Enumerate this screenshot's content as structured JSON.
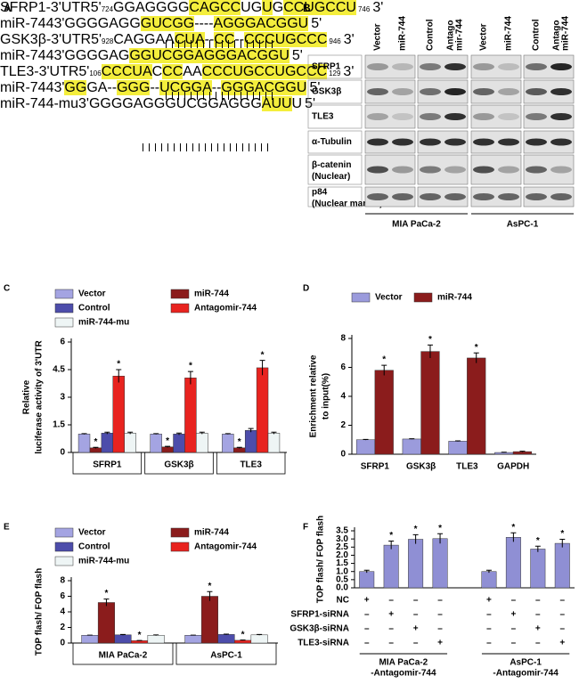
{
  "panel_a": {
    "label": "A",
    "rows": [
      {
        "name": "SFRP1-3'UTR",
        "prime": "5'",
        "start": "724",
        "segments": [
          {
            "text": "GGAGGGG",
            "hl": false
          },
          {
            "text": "CAGCC",
            "hl": true
          },
          {
            "text": "UG",
            "hl": false
          },
          {
            "text": "U",
            "hl": true
          },
          {
            "text": "G",
            "hl": false
          },
          {
            "text": "CCUGCCU",
            "hl": true
          }
        ],
        "end_num": "746",
        "end": "3'"
      },
      {
        "name": "miR-744",
        "prime": "3'",
        "segments": [
          {
            "text": "GGGGAGG",
            "hl": false
          },
          {
            "text": "GUCGG",
            "hl": true
          },
          {
            "text": "----",
            "hl": false
          },
          {
            "text": "AGGGACGGU",
            "hl": true
          }
        ],
        "end": "5'"
      },
      {
        "name": "GSK3β-3'UTR",
        "prime": "5'",
        "start": "928",
        "segments": [
          {
            "text": "CAGGAA",
            "hl": false
          },
          {
            "text": "CUA",
            "hl": true
          },
          {
            "text": "--",
            "hl": false
          },
          {
            "text": "CC",
            "hl": true
          },
          {
            "text": "--",
            "hl": false
          },
          {
            "text": "CCCUGCCC",
            "hl": true
          }
        ],
        "end_num": "946",
        "end": "3'"
      },
      {
        "name": "miR-744",
        "prime": "3'",
        "segments": [
          {
            "text": "GGGGAG",
            "hl": false
          },
          {
            "text": "GGUCGGAGGGACGGU",
            "hl": true
          }
        ],
        "end": "5'"
      },
      {
        "name": "TLE3-3'UTR",
        "prime": "5'",
        "start": "106",
        "segments": [
          {
            "text": "CCCUA",
            "hl": true
          },
          {
            "text": "C",
            "hl": false
          },
          {
            "text": "CC",
            "hl": true
          },
          {
            "text": "AA",
            "hl": false
          },
          {
            "text": "CCCUGCCUGCCC",
            "hl": true
          }
        ],
        "end_num": "129",
        "end": "3'"
      },
      {
        "name": "miR-744",
        "prime": "3'",
        "segments": [
          {
            "text": "GG",
            "hl": true
          },
          {
            "text": "GA--",
            "hl": false
          },
          {
            "text": "GGG",
            "hl": true
          },
          {
            "text": "--",
            "hl": false
          },
          {
            "text": "UCGGA",
            "hl": true
          },
          {
            "text": "--",
            "hl": false
          },
          {
            "text": "GGGACGGU",
            "hl": true
          }
        ],
        "end": "5'"
      },
      {
        "name": "miR-744-mu",
        "prime": "3'",
        "segments": [
          {
            "text": "GGGGAGGGUCGGAGGG",
            "hl": false
          },
          {
            "text": "AUU",
            "hl": true
          },
          {
            "text": "U",
            "hl": false
          }
        ],
        "end": "5'"
      }
    ]
  },
  "panel_b": {
    "label": "B",
    "columns": [
      [
        "Vector"
      ],
      [
        "miR-744"
      ],
      [
        "Control"
      ],
      [
        "Antago",
        "mir-744"
      ],
      [
        "Vector"
      ],
      [
        "miR-744"
      ],
      [
        "Control"
      ],
      [
        "Antago",
        "miR-744"
      ]
    ],
    "rows": [
      {
        "name": "SFRP1"
      },
      {
        "name": "GSK3β"
      },
      {
        "name": "TLE3"
      },
      {
        "name": "α-Tubulin"
      },
      {
        "name": "β-catenin",
        "note": "(Nuclear)"
      },
      {
        "name": "p84",
        "note": "(Nuclear marker)"
      }
    ],
    "groups": [
      "MIA PaCa-2",
      "AsPC-1"
    ]
  },
  "chart_data": [
    {
      "type": "bar",
      "panel": "C",
      "ylabel": [
        "Relative",
        "luciferase activity of 3'UTR"
      ],
      "categories": [
        "SFRP1",
        "GSK3β",
        "TLE3"
      ],
      "series": [
        {
          "name": "Vector",
          "color": "#a4a4e2",
          "values": [
            1,
            1,
            1
          ],
          "errors": [
            0.02,
            0.02,
            0.02
          ]
        },
        {
          "name": "miR-744",
          "color": "#8b1c1c",
          "values": [
            0.25,
            0.3,
            0.25
          ],
          "errors": [
            0.03,
            0.03,
            0.03
          ],
          "marks": [
            "*",
            "*",
            "*"
          ]
        },
        {
          "name": "Control",
          "color": "#4d4dab",
          "values": [
            1.05,
            1,
            1.2
          ],
          "errors": [
            0.05,
            0.05,
            0.1
          ]
        },
        {
          "name": "Antagomir-744",
          "color": "#e8231f",
          "values": [
            4.15,
            4.05,
            4.6
          ],
          "errors": [
            0.35,
            0.35,
            0.4
          ],
          "marks": [
            "*",
            "*",
            "*"
          ]
        },
        {
          "name": "miR-744-mu",
          "color": "#eef5f5",
          "values": [
            1.05,
            1.05,
            1.05
          ],
          "errors": [
            0.05,
            0.05,
            0.05
          ]
        }
      ],
      "ylim": [
        0,
        6
      ],
      "yticks": [
        0,
        1.5,
        3,
        4.5,
        6
      ]
    },
    {
      "type": "bar",
      "panel": "D",
      "ylabel": [
        "Enrichment relative",
        "to input(%)"
      ],
      "categories": [
        "SFRP1",
        "GSK3β",
        "TLE3",
        "GAPDH"
      ],
      "series": [
        {
          "name": "Vector",
          "color": "#9b9bdc",
          "values": [
            1,
            1.05,
            0.9,
            0.12
          ],
          "errors": [
            0.02,
            0.02,
            0.02,
            0.02
          ]
        },
        {
          "name": "miR-744",
          "color": "#8b1c1c",
          "values": [
            5.8,
            7.1,
            6.65,
            0.18
          ],
          "errors": [
            0.35,
            0.45,
            0.35,
            0.03
          ],
          "marks": [
            "*",
            "*",
            "*",
            null
          ]
        }
      ],
      "ylim": [
        0,
        8
      ],
      "yticks": [
        0,
        2,
        4,
        6,
        8
      ]
    },
    {
      "type": "bar",
      "panel": "E",
      "ylabel": [
        "TOP flash/ FOP flash"
      ],
      "categories": [
        "MIA PaCa-2",
        "AsPC-1"
      ],
      "series": [
        {
          "name": "Vector",
          "color": "#a4a4e2",
          "values": [
            1,
            1
          ],
          "errors": [
            0.02,
            0.02
          ]
        },
        {
          "name": "miR-744",
          "color": "#8b1c1c",
          "values": [
            5.2,
            6.0
          ],
          "errors": [
            0.45,
            0.6
          ],
          "marks": [
            "*",
            "*"
          ]
        },
        {
          "name": "Control",
          "color": "#4d4dab",
          "values": [
            1.05,
            1.1
          ],
          "errors": [
            0.05,
            0.05
          ]
        },
        {
          "name": "Antagomir-744",
          "color": "#e8231f",
          "values": [
            0.3,
            0.35
          ],
          "errors": [
            0.03,
            0.03
          ],
          "marks": [
            "*",
            "*"
          ]
        },
        {
          "name": "miR-744-mu",
          "color": "#eef5f5",
          "values": [
            1,
            1.05
          ],
          "errors": [
            0.05,
            0.05
          ]
        }
      ],
      "ylim": [
        0,
        8
      ],
      "yticks": [
        0,
        2,
        4,
        6,
        8
      ]
    },
    {
      "type": "bar",
      "panel": "F",
      "ylabel": [
        "TOP flash/ FOP flash"
      ],
      "color": "#8f8fd4",
      "values": [
        1.0,
        2.62,
        2.98,
        3.02,
        1.0,
        3.1,
        2.38,
        2.73
      ],
      "errors": [
        0.08,
        0.25,
        0.28,
        0.3,
        0.08,
        0.28,
        0.18,
        0.25
      ],
      "marks": [
        null,
        "*",
        "*",
        "*",
        null,
        "*",
        "*",
        "*"
      ],
      "ylim": [
        0,
        3.5
      ],
      "yticks": [
        {
          "value": 0,
          "label": "0.0"
        },
        0.5,
        {
          "value": 1,
          "label": "1.0"
        },
        1.5,
        {
          "value": 2,
          "label": "2.0"
        },
        2.5,
        {
          "value": 3,
          "label": "3.0"
        },
        3.5
      ],
      "treatments": [
        {
          "name": "NC",
          "signs": [
            "+",
            "–",
            "–",
            "–",
            "+",
            "–",
            "–",
            "–"
          ]
        },
        {
          "name": "SFRP1-siRNA",
          "signs": [
            "–",
            "+",
            "–",
            "–",
            "–",
            "+",
            "–",
            "–"
          ]
        },
        {
          "name": "GSK3β-siRNA",
          "signs": [
            "–",
            "–",
            "+",
            "–",
            "–",
            "–",
            "+",
            "–"
          ]
        },
        {
          "name": "TLE3-siRNA",
          "signs": [
            "–",
            "–",
            "–",
            "+",
            "–",
            "–",
            "–",
            "+"
          ]
        }
      ],
      "group_labels": [
        [
          "MIA PaCa-2",
          "-Antagomir-744"
        ],
        [
          "AsPC-1",
          "-Antagomir-744"
        ]
      ]
    }
  ]
}
